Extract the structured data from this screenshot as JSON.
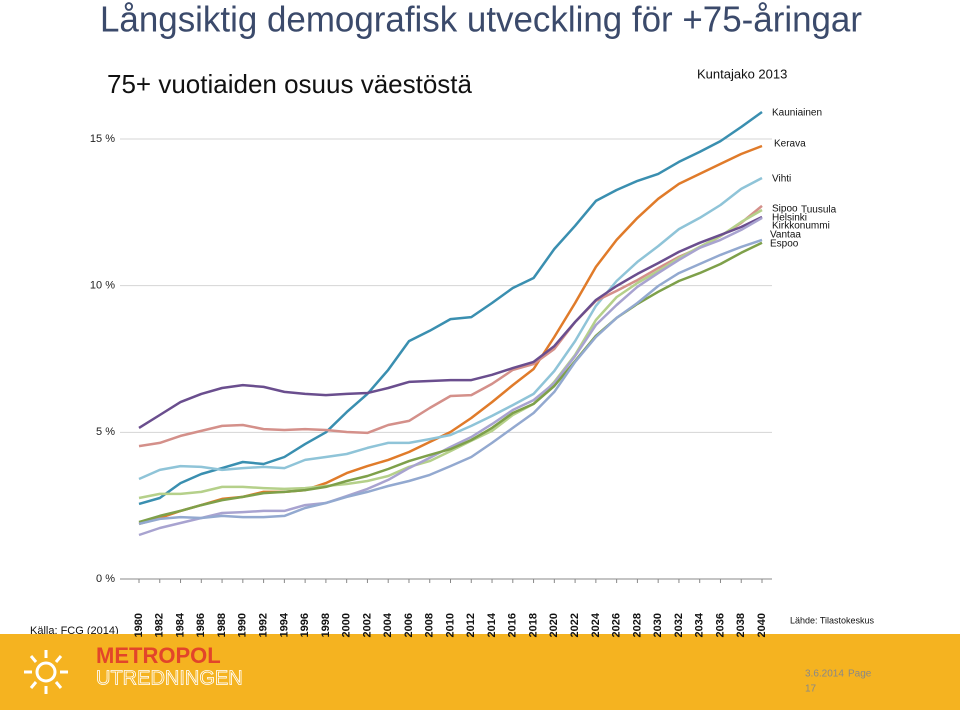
{
  "slide": {
    "title": "Långsiktig demografisk utveckling för +75-åringar",
    "source": "Källa: FCG (2014)",
    "logo_top": "METROPOL",
    "logo_bottom": "UTREDNINGEN",
    "date": "3.6.2014",
    "page_label": "Page",
    "page": "17"
  },
  "chart_data": {
    "type": "line",
    "title": "75+ vuotiaiden osuus väestöstä",
    "subtitle": "Kuntajako 2013",
    "source": "Lähde: Tilastokeskus",
    "x": [
      1980,
      1982,
      1984,
      1986,
      1988,
      1990,
      1992,
      1994,
      1996,
      1998,
      2000,
      2002,
      2004,
      2006,
      2008,
      2010,
      2012,
      2014,
      2016,
      2018,
      2020,
      2022,
      2024,
      2026,
      2028,
      2030,
      2032,
      2034,
      2036,
      2038,
      2040
    ],
    "xlim": [
      1980,
      2040
    ],
    "ylim": [
      0,
      15
    ],
    "yticks": [
      {
        "value": 0,
        "label": "0 %"
      },
      {
        "value": 5,
        "label": "5 %"
      },
      {
        "value": 10,
        "label": "10 %"
      },
      {
        "value": 15,
        "label": "15 %"
      }
    ],
    "grid": true,
    "series": [
      {
        "name": "Kauniainen",
        "color": "#3a8fb0",
        "values": [
          2.56,
          2.76,
          3.27,
          3.58,
          3.78,
          3.99,
          3.92,
          4.16,
          4.6,
          5.0,
          5.69,
          6.31,
          7.13,
          8.11,
          8.46,
          8.86,
          8.93,
          9.41,
          9.92,
          10.26,
          11.25,
          12.04,
          12.89,
          13.26,
          13.57,
          13.81,
          14.22,
          14.56,
          14.93,
          15.41,
          15.92
        ]
      },
      {
        "name": "Kerava",
        "color": "#e07b2a",
        "values": [
          1.88,
          2.08,
          2.32,
          2.52,
          2.73,
          2.8,
          2.97,
          2.97,
          3.03,
          3.27,
          3.61,
          3.85,
          4.06,
          4.33,
          4.67,
          5.01,
          5.49,
          6.03,
          6.61,
          7.16,
          8.25,
          9.41,
          10.64,
          11.56,
          12.31,
          12.96,
          13.47,
          13.81,
          14.15,
          14.49,
          14.76
        ]
      },
      {
        "name": "Vihti",
        "color": "#8fc4d8",
        "values": [
          3.41,
          3.72,
          3.85,
          3.82,
          3.72,
          3.78,
          3.82,
          3.78,
          4.06,
          4.16,
          4.26,
          4.47,
          4.64,
          4.64,
          4.77,
          4.91,
          5.22,
          5.56,
          5.93,
          6.31,
          7.09,
          8.11,
          9.31,
          10.16,
          10.81,
          11.35,
          11.93,
          12.31,
          12.75,
          13.3,
          13.67
        ]
      },
      {
        "name": "Sipoo",
        "color": "#d4908a",
        "values": [
          4.53,
          4.64,
          4.88,
          5.05,
          5.22,
          5.25,
          5.11,
          5.08,
          5.11,
          5.08,
          5.01,
          4.98,
          5.25,
          5.39,
          5.83,
          6.24,
          6.27,
          6.65,
          7.13,
          7.33,
          7.84,
          8.76,
          9.48,
          9.82,
          10.19,
          10.6,
          10.98,
          11.29,
          11.69,
          12.14,
          12.72
        ]
      },
      {
        "name": "Tuusula",
        "color": "#b5d08a",
        "values": [
          2.76,
          2.9,
          2.9,
          2.97,
          3.14,
          3.14,
          3.1,
          3.07,
          3.1,
          3.17,
          3.24,
          3.34,
          3.51,
          3.82,
          4.02,
          4.36,
          4.71,
          5.05,
          5.59,
          5.97,
          6.72,
          7.64,
          8.83,
          9.61,
          10.09,
          10.5,
          10.94,
          11.32,
          11.69,
          12.17,
          12.58
        ]
      },
      {
        "name": "Helsinki",
        "color": "#6a4e8e",
        "values": [
          5.15,
          5.59,
          6.03,
          6.31,
          6.51,
          6.61,
          6.55,
          6.38,
          6.31,
          6.27,
          6.31,
          6.34,
          6.51,
          6.72,
          6.75,
          6.78,
          6.78,
          6.96,
          7.19,
          7.4,
          7.94,
          8.76,
          9.51,
          9.99,
          10.4,
          10.77,
          11.15,
          11.46,
          11.73,
          12.0,
          12.34
        ]
      },
      {
        "name": "Kirkkonummi",
        "color": "#a8a3d0",
        "values": [
          1.5,
          1.74,
          1.91,
          2.08,
          2.25,
          2.28,
          2.32,
          2.32,
          2.52,
          2.59,
          2.83,
          3.07,
          3.38,
          3.78,
          4.13,
          4.5,
          4.84,
          5.28,
          5.76,
          6.1,
          6.68,
          7.6,
          8.66,
          9.34,
          9.96,
          10.43,
          10.88,
          11.29,
          11.56,
          11.9,
          12.31
        ]
      },
      {
        "name": "Vantaa",
        "color": "#7ea04a",
        "values": [
          1.94,
          2.15,
          2.32,
          2.52,
          2.69,
          2.8,
          2.93,
          2.97,
          3.03,
          3.14,
          3.34,
          3.51,
          3.75,
          4.02,
          4.23,
          4.43,
          4.74,
          5.15,
          5.66,
          5.97,
          6.58,
          7.43,
          8.29,
          8.9,
          9.38,
          9.79,
          10.16,
          10.43,
          10.74,
          11.12,
          11.46
        ]
      },
      {
        "name": "Espoo",
        "color": "#93a9d0",
        "values": [
          1.88,
          2.05,
          2.11,
          2.08,
          2.15,
          2.11,
          2.11,
          2.15,
          2.42,
          2.59,
          2.8,
          2.97,
          3.17,
          3.34,
          3.55,
          3.85,
          4.16,
          4.64,
          5.15,
          5.66,
          6.38,
          7.4,
          8.25,
          8.9,
          9.41,
          9.99,
          10.43,
          10.74,
          11.05,
          11.32,
          11.56
        ]
      }
    ]
  }
}
